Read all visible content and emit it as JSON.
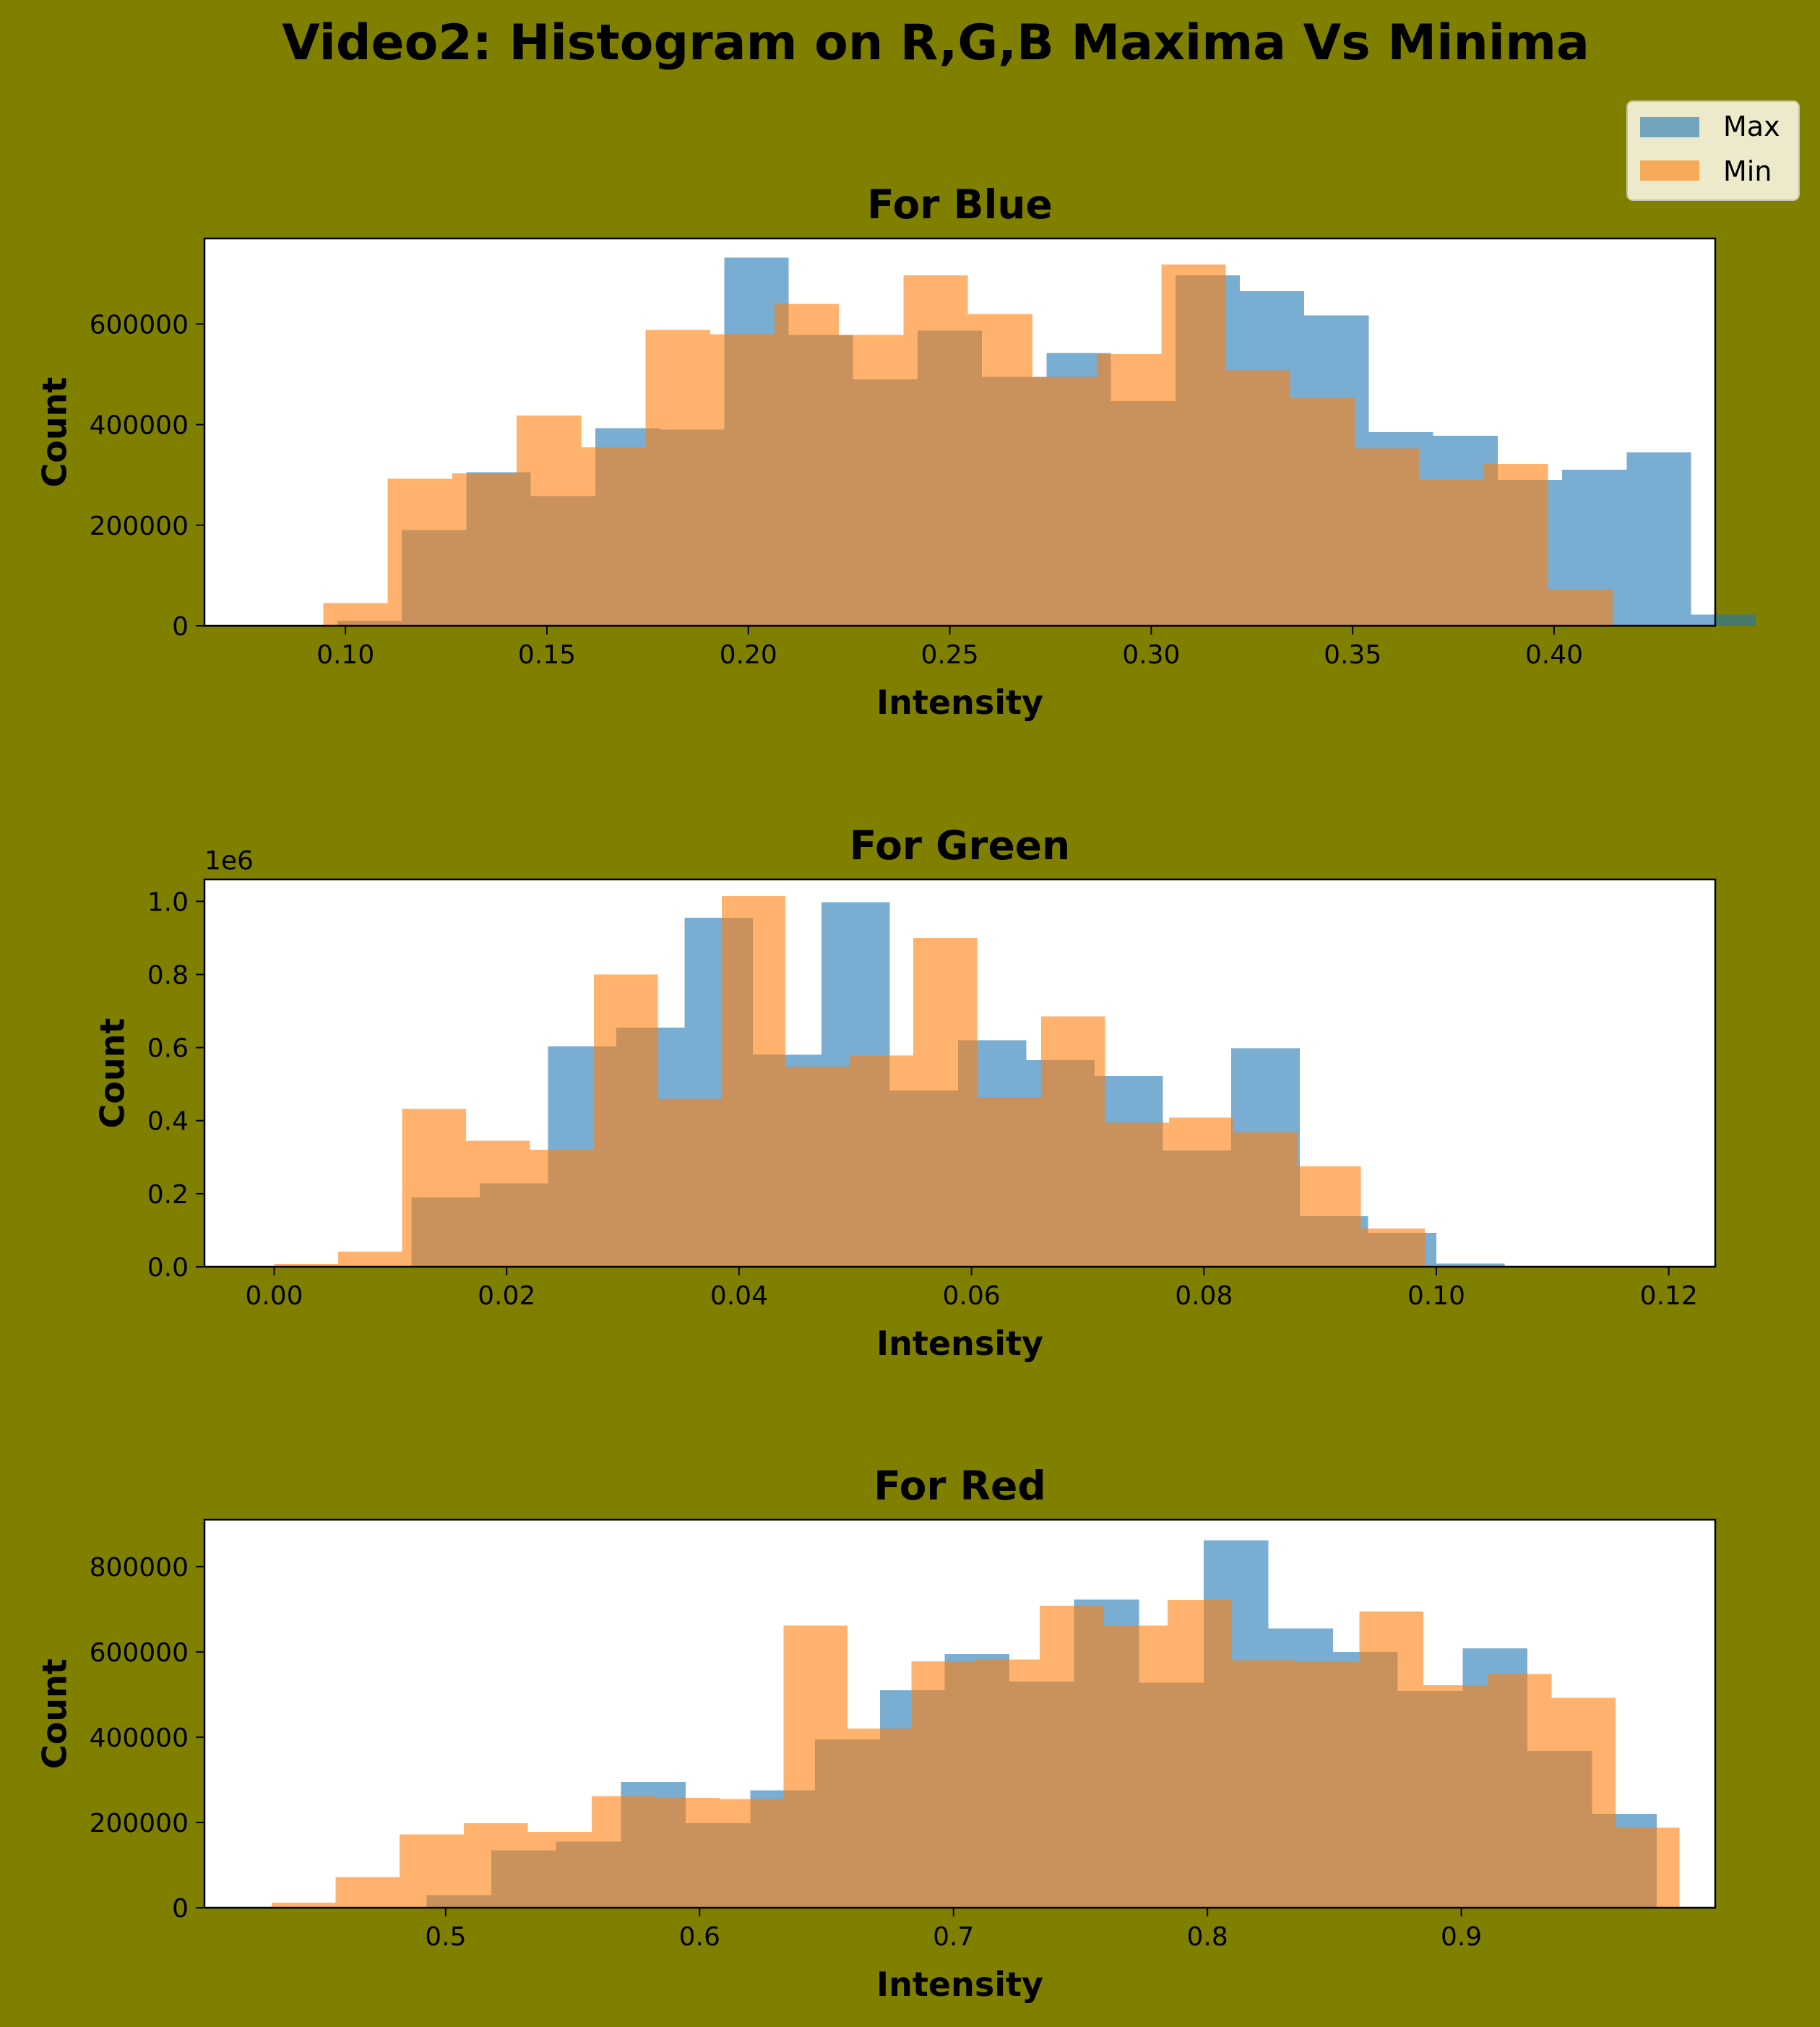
{
  "figure": {
    "title": "Video2: Histogram on R,G,B Maxima Vs Minima",
    "background": "#808000"
  },
  "legend": {
    "placement": "top-right",
    "entries": [
      {
        "label": "Max",
        "color": "#1f77b4"
      },
      {
        "label": "Min",
        "color": "#ff7f0e"
      }
    ]
  },
  "chart_data": [
    {
      "type": "bar",
      "title": "For Blue",
      "xlabel": "Intensity",
      "ylabel": "Count",
      "xlim": [
        0.065,
        0.44
      ],
      "ylim": [
        0,
        770000
      ],
      "xticks": [
        0.1,
        0.15,
        0.2,
        0.25,
        0.3,
        0.35,
        0.4
      ],
      "xtick_labels": [
        "0.10",
        "0.15",
        "0.20",
        "0.25",
        "0.30",
        "0.35",
        "0.40"
      ],
      "yticks": [
        0,
        200000,
        400000,
        600000
      ],
      "ytick_labels": [
        "0",
        "200000",
        "400000",
        "600000"
      ],
      "offset_text": "",
      "series": [
        {
          "name": "Max",
          "bin_start": 0.098,
          "bin_width": 0.016,
          "counts": [
            10000,
            190000,
            305000,
            258000,
            393000,
            390000,
            732000,
            578000,
            490000,
            587000,
            495000,
            542000,
            447000,
            697000,
            665000,
            617000,
            385000,
            378000,
            290000,
            310000,
            345000,
            22000
          ]
        },
        {
          "name": "Min",
          "bin_start": 0.0945,
          "bin_width": 0.016,
          "counts": [
            45000,
            292000,
            303000,
            418000,
            355000,
            588000,
            580000,
            640000,
            578000,
            697000,
            620000,
            495000,
            540000,
            718000,
            508000,
            453000,
            353000,
            290000,
            322000,
            72000
          ]
        }
      ]
    },
    {
      "type": "bar",
      "title": "For Green",
      "xlabel": "Intensity",
      "ylabel": "Count",
      "xlim": [
        -0.006,
        0.124
      ],
      "ylim": [
        0,
        1060000
      ],
      "xticks": [
        0.0,
        0.02,
        0.04,
        0.06,
        0.08,
        0.1,
        0.12
      ],
      "xtick_labels": [
        "0.00",
        "0.02",
        "0.04",
        "0.06",
        "0.08",
        "0.10",
        "0.12"
      ],
      "yticks": [
        0,
        200000,
        400000,
        600000,
        800000,
        1000000
      ],
      "ytick_labels": [
        "0.0",
        "0.2",
        "0.4",
        "0.6",
        "0.8",
        "1.0"
      ],
      "offset_text": "1e6",
      "series": [
        {
          "name": "Max",
          "bin_start": 0.0118,
          "bin_width": 0.00588,
          "counts": [
            190000,
            228000,
            603000,
            655000,
            955000,
            580000,
            998000,
            483000,
            620000,
            566000,
            522000,
            318000,
            598000,
            138000,
            93000,
            9000
          ]
        },
        {
          "name": "Min",
          "bin_start": 0.0,
          "bin_width": 0.0055,
          "counts": [
            8000,
            42000,
            432000,
            345000,
            320000,
            800000,
            460000,
            1015000,
            548000,
            578000,
            900000,
            465000,
            685000,
            395000,
            408000,
            368000,
            275000,
            105000
          ]
        }
      ]
    },
    {
      "type": "bar",
      "title": "For Red",
      "xlabel": "Intensity",
      "ylabel": "Count",
      "xlim": [
        0.405,
        1.0
      ],
      "ylim": [
        0,
        910000
      ],
      "xticks": [
        0.5,
        0.6,
        0.7,
        0.8,
        0.9
      ],
      "xtick_labels": [
        "0.5",
        "0.6",
        "0.7",
        "0.8",
        "0.9"
      ],
      "yticks": [
        0,
        200000,
        400000,
        600000,
        800000
      ],
      "ytick_labels": [
        "0",
        "200000",
        "400000",
        "600000",
        "800000"
      ],
      "offset_text": "",
      "series": [
        {
          "name": "Max",
          "bin_start": 0.4925,
          "bin_width": 0.0255,
          "counts": [
            30000,
            135000,
            155000,
            295000,
            198000,
            275000,
            395000,
            510000,
            595000,
            530000,
            723000,
            528000,
            862000,
            655000,
            600000,
            508000,
            608000,
            368000,
            220000
          ]
        },
        {
          "name": "Min",
          "bin_start": 0.4315,
          "bin_width": 0.0252,
          "counts": [
            12000,
            72000,
            172000,
            198000,
            178000,
            262000,
            258000,
            255000,
            662000,
            420000,
            578000,
            582000,
            708000,
            662000,
            722000,
            580000,
            578000,
            695000,
            522000,
            548000,
            492000,
            188000
          ]
        }
      ]
    }
  ]
}
